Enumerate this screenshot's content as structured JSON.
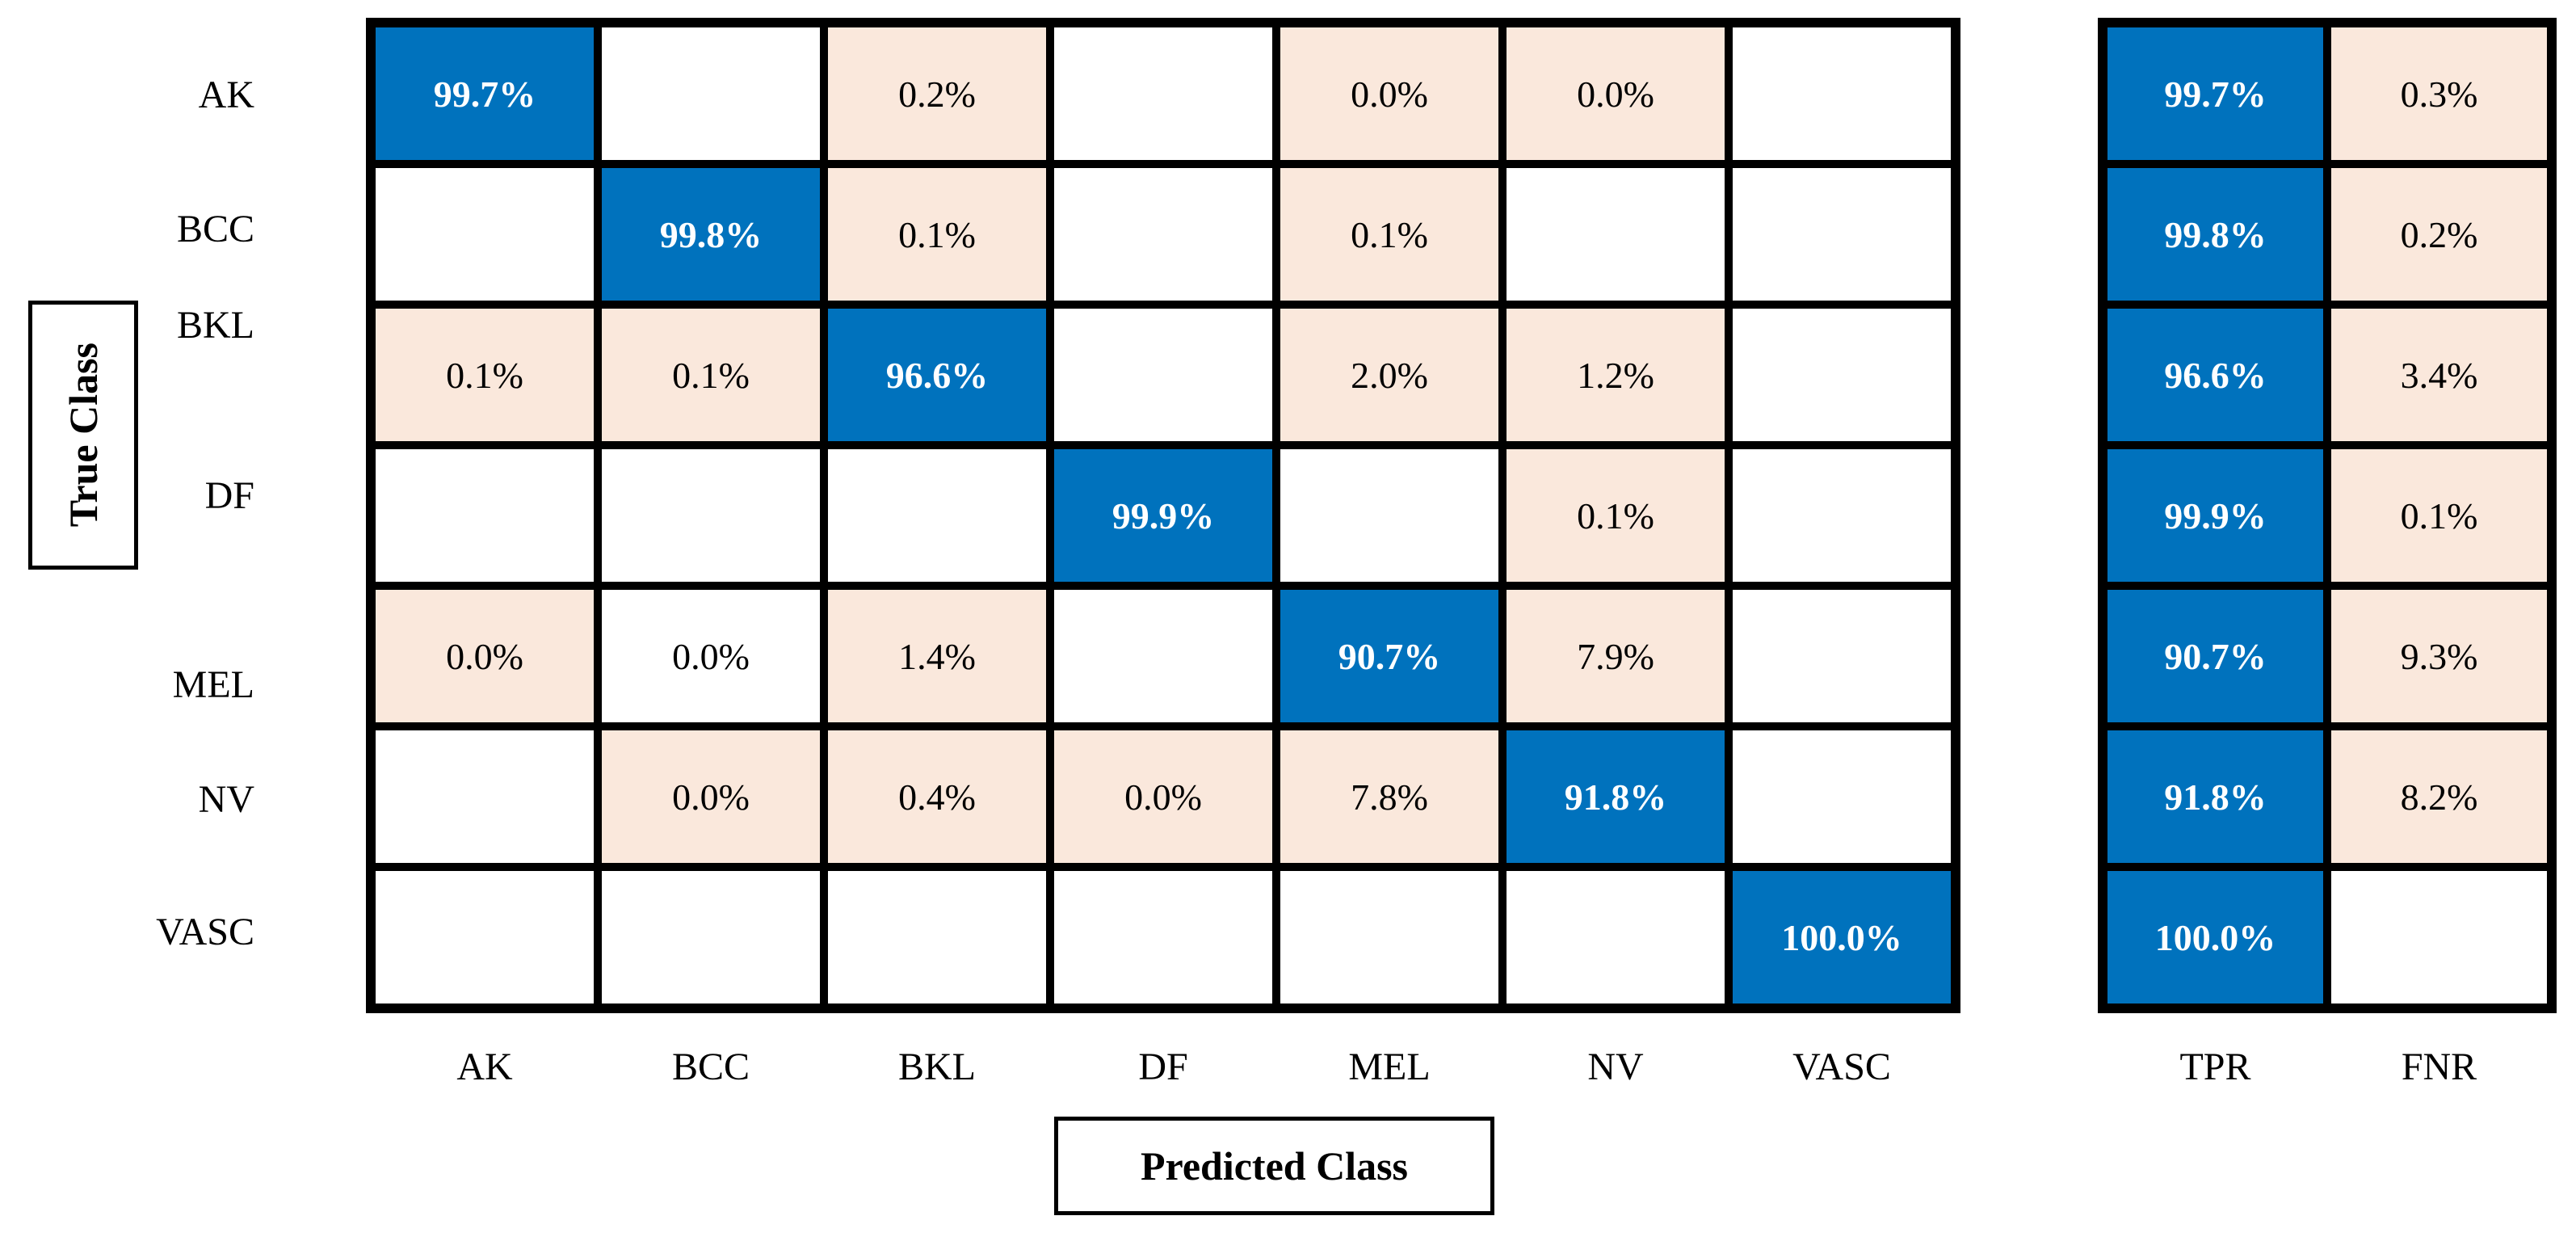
{
  "chart_data": {
    "type": "heatmap",
    "title": "",
    "xlabel": "Predicted Class",
    "ylabel": "True Class",
    "classes": [
      "AK",
      "BCC",
      "BKL",
      "DF",
      "MEL",
      "NV",
      "VASC"
    ],
    "summary_headers": [
      "TPR",
      "FNR"
    ],
    "grid": "on",
    "legend_position": "none",
    "colors": {
      "diagonal": "#0072BD",
      "diagonal_text": "#FFFFFF",
      "offdiag": "#FAE8DC",
      "offdiag_text": "#000000",
      "empty": "#FFFFFF",
      "gridline": "#000000"
    },
    "values_matrix_percent": [
      [
        99.7,
        null,
        0.2,
        null,
        0.0,
        0.0,
        null
      ],
      [
        null,
        99.8,
        0.1,
        null,
        0.1,
        null,
        null
      ],
      [
        0.1,
        0.1,
        96.6,
        null,
        2.0,
        1.2,
        null
      ],
      [
        null,
        null,
        null,
        99.9,
        null,
        0.1,
        null
      ],
      [
        0.0,
        0.0,
        1.4,
        null,
        90.7,
        7.9,
        null
      ],
      [
        null,
        0.0,
        0.4,
        0.0,
        7.8,
        91.8,
        null
      ],
      [
        null,
        null,
        null,
        null,
        null,
        null,
        100.0
      ]
    ],
    "tpr_percent": [
      99.7,
      99.8,
      96.6,
      99.9,
      90.7,
      91.8,
      100.0
    ],
    "fnr_percent": [
      0.3,
      0.2,
      3.4,
      0.1,
      9.3,
      8.2,
      null
    ],
    "rows": [
      {
        "label": "AK",
        "cells": [
          {
            "text": "99.7%",
            "style": "diagonal"
          },
          {
            "text": "",
            "style": "empty"
          },
          {
            "text": "0.2%",
            "style": "offdiag"
          },
          {
            "text": "",
            "style": "empty"
          },
          {
            "text": "0.0%",
            "style": "offdiag"
          },
          {
            "text": "0.0%",
            "style": "offdiag"
          },
          {
            "text": "",
            "style": "empty"
          }
        ],
        "tpr": {
          "text": "99.7%",
          "style": "diagonal"
        },
        "fnr": {
          "text": "0.3%",
          "style": "offdiag"
        }
      },
      {
        "label": "BCC",
        "cells": [
          {
            "text": "",
            "style": "empty"
          },
          {
            "text": "99.8%",
            "style": "diagonal"
          },
          {
            "text": "0.1%",
            "style": "offdiag"
          },
          {
            "text": "",
            "style": "empty"
          },
          {
            "text": "0.1%",
            "style": "offdiag"
          },
          {
            "text": "",
            "style": "empty"
          },
          {
            "text": "",
            "style": "empty"
          }
        ],
        "tpr": {
          "text": "99.8%",
          "style": "diagonal"
        },
        "fnr": {
          "text": "0.2%",
          "style": "offdiag"
        }
      },
      {
        "label": "BKL",
        "cells": [
          {
            "text": "0.1%",
            "style": "offdiag"
          },
          {
            "text": "0.1%",
            "style": "offdiag"
          },
          {
            "text": "96.6%",
            "style": "diagonal"
          },
          {
            "text": "",
            "style": "empty"
          },
          {
            "text": "2.0%",
            "style": "offdiag"
          },
          {
            "text": "1.2%",
            "style": "offdiag"
          },
          {
            "text": "",
            "style": "empty"
          }
        ],
        "tpr": {
          "text": "96.6%",
          "style": "diagonal"
        },
        "fnr": {
          "text": "3.4%",
          "style": "offdiag"
        }
      },
      {
        "label": "DF",
        "cells": [
          {
            "text": "",
            "style": "empty"
          },
          {
            "text": "",
            "style": "empty"
          },
          {
            "text": "",
            "style": "empty"
          },
          {
            "text": "99.9%",
            "style": "diagonal"
          },
          {
            "text": "",
            "style": "empty"
          },
          {
            "text": "0.1%",
            "style": "offdiag"
          },
          {
            "text": "",
            "style": "empty"
          }
        ],
        "tpr": {
          "text": "99.9%",
          "style": "diagonal"
        },
        "fnr": {
          "text": "0.1%",
          "style": "offdiag"
        }
      },
      {
        "label": "MEL",
        "cells": [
          {
            "text": "0.0%",
            "style": "offdiag"
          },
          {
            "text": "0.0%",
            "style": "plain"
          },
          {
            "text": "1.4%",
            "style": "offdiag"
          },
          {
            "text": "",
            "style": "empty"
          },
          {
            "text": "90.7%",
            "style": "diagonal"
          },
          {
            "text": "7.9%",
            "style": "offdiag"
          },
          {
            "text": "",
            "style": "empty"
          }
        ],
        "tpr": {
          "text": "90.7%",
          "style": "diagonal"
        },
        "fnr": {
          "text": "9.3%",
          "style": "offdiag"
        }
      },
      {
        "label": "NV",
        "cells": [
          {
            "text": "",
            "style": "empty"
          },
          {
            "text": "0.0%",
            "style": "offdiag"
          },
          {
            "text": "0.4%",
            "style": "offdiag"
          },
          {
            "text": "0.0%",
            "style": "offdiag"
          },
          {
            "text": "7.8%",
            "style": "offdiag"
          },
          {
            "text": "91.8%",
            "style": "diagonal"
          },
          {
            "text": "",
            "style": "empty"
          }
        ],
        "tpr": {
          "text": "91.8%",
          "style": "diagonal"
        },
        "fnr": {
          "text": "8.2%",
          "style": "offdiag"
        }
      },
      {
        "label": "VASC",
        "cells": [
          {
            "text": "",
            "style": "empty"
          },
          {
            "text": "",
            "style": "empty"
          },
          {
            "text": "",
            "style": "empty"
          },
          {
            "text": "",
            "style": "empty"
          },
          {
            "text": "",
            "style": "empty"
          },
          {
            "text": "",
            "style": "empty"
          },
          {
            "text": "100.0%",
            "style": "diagonal"
          }
        ],
        "tpr": {
          "text": "100.0%",
          "style": "diagonal"
        },
        "fnr": {
          "text": "",
          "style": "empty"
        }
      }
    ]
  }
}
